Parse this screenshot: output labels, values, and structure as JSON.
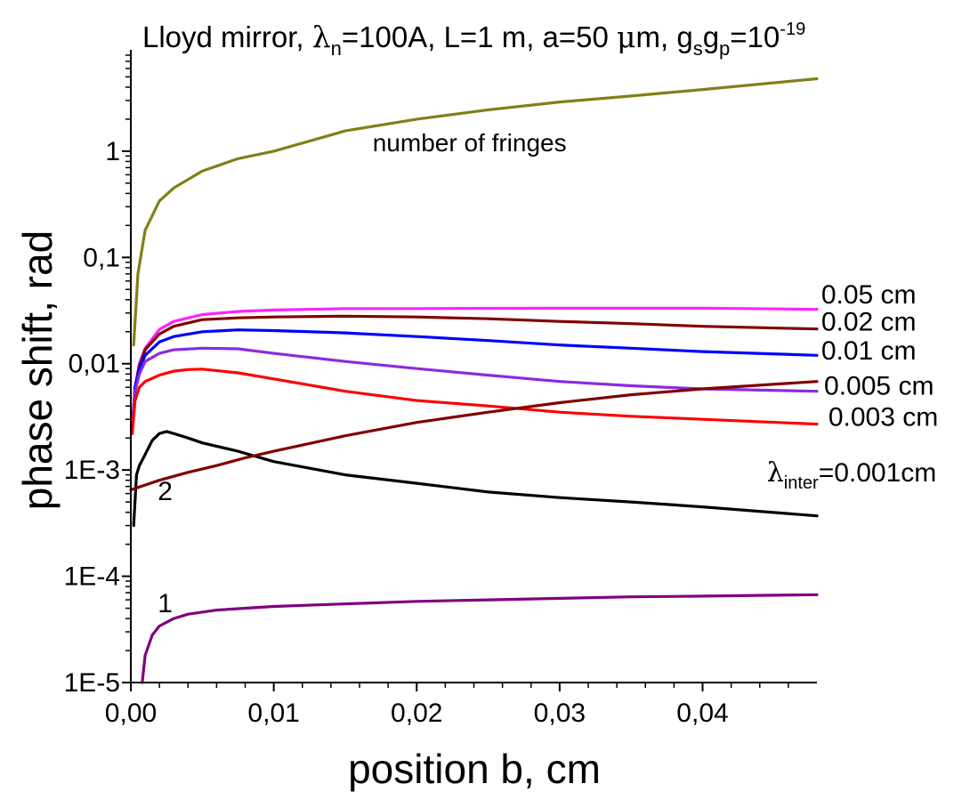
{
  "chart_data": {
    "type": "line",
    "title": {
      "parts": [
        {
          "text": "Lloyd mirror, "
        },
        {
          "text": "λ",
          "style": "greek"
        },
        {
          "text": "n",
          "style": "sub"
        },
        {
          "text": "=100A, L=1 m, a=50 "
        },
        {
          "text": "μ",
          "style": "greek"
        },
        {
          "text": "m, g"
        },
        {
          "text": "s",
          "style": "sub"
        },
        {
          "text": "g"
        },
        {
          "text": "p",
          "style": "sub"
        },
        {
          "text": "=10"
        },
        {
          "text": "-19",
          "style": "sup"
        }
      ]
    },
    "xlabel": "position b, cm",
    "ylabel": "phase shift,  rad",
    "xlim": [
      0,
      0.048
    ],
    "ylim": [
      1e-05,
      8
    ],
    "yscale": "log",
    "x_ticks": [
      0,
      0.01,
      0.02,
      0.03,
      0.04
    ],
    "x_tick_labels": [
      "0,00",
      "0,01",
      "0,02",
      "0,03",
      "0,04"
    ],
    "y_ticks": [
      1e-05,
      0.0001,
      0.001,
      0.01,
      0.1,
      1
    ],
    "y_tick_labels": [
      "1E-5",
      "1E-4",
      "1E-3",
      "0,01",
      "0,1",
      "1"
    ],
    "grid": false,
    "legend": "none",
    "series": [
      {
        "color": "#808018",
        "x": [
          0.0002,
          0.0005,
          0.001,
          0.002,
          0.003,
          0.005,
          0.0075,
          0.01,
          0.015,
          0.02,
          0.025,
          0.03,
          0.035,
          0.04,
          0.048
        ],
        "y": [
          0.015,
          0.07,
          0.18,
          0.34,
          0.45,
          0.65,
          0.85,
          1.0,
          1.55,
          2.0,
          2.45,
          2.9,
          3.3,
          3.8,
          4.8
        ]
      },
      {
        "color": "#ff22ff",
        "x": [
          0.0001,
          0.0003,
          0.0006,
          0.001,
          0.002,
          0.003,
          0.005,
          0.0075,
          0.01,
          0.015,
          0.02,
          0.025,
          0.03,
          0.035,
          0.04,
          0.048
        ],
        "y": [
          0.0025,
          0.006,
          0.01,
          0.014,
          0.021,
          0.025,
          0.029,
          0.031,
          0.032,
          0.033,
          0.033,
          0.0332,
          0.0333,
          0.0333,
          0.0333,
          0.0325
        ]
      },
      {
        "color": "#800000",
        "x": [
          0.0001,
          0.0003,
          0.0006,
          0.001,
          0.002,
          0.003,
          0.005,
          0.0075,
          0.01,
          0.015,
          0.02,
          0.025,
          0.03,
          0.035,
          0.04,
          0.048
        ],
        "y": [
          0.0025,
          0.006,
          0.0095,
          0.0135,
          0.019,
          0.0225,
          0.026,
          0.027,
          0.0275,
          0.028,
          0.0275,
          0.0265,
          0.025,
          0.0238,
          0.0225,
          0.0212
        ]
      },
      {
        "color": "#0000ff",
        "x": [
          0.0001,
          0.0003,
          0.0006,
          0.001,
          0.002,
          0.003,
          0.005,
          0.0075,
          0.01,
          0.015,
          0.02,
          0.025,
          0.03,
          0.035,
          0.04,
          0.048
        ],
        "y": [
          0.0025,
          0.006,
          0.009,
          0.012,
          0.016,
          0.018,
          0.02,
          0.0208,
          0.0205,
          0.0195,
          0.018,
          0.0165,
          0.015,
          0.014,
          0.013,
          0.012
        ]
      },
      {
        "color": "#8a2be2",
        "x": [
          0.0001,
          0.0003,
          0.0006,
          0.001,
          0.002,
          0.003,
          0.005,
          0.0075,
          0.01,
          0.015,
          0.02,
          0.025,
          0.03,
          0.035,
          0.04,
          0.048
        ],
        "y": [
          0.0025,
          0.0055,
          0.008,
          0.0105,
          0.0125,
          0.0135,
          0.014,
          0.0138,
          0.0125,
          0.0105,
          0.009,
          0.0078,
          0.0068,
          0.0062,
          0.0058,
          0.0055
        ]
      },
      {
        "color": "#ff0000",
        "x": [
          0.0001,
          0.0003,
          0.0006,
          0.001,
          0.002,
          0.003,
          0.004,
          0.005,
          0.0075,
          0.01,
          0.015,
          0.02,
          0.025,
          0.03,
          0.035,
          0.04,
          0.048
        ],
        "y": [
          0.0022,
          0.0045,
          0.006,
          0.0068,
          0.0078,
          0.0085,
          0.0088,
          0.0089,
          0.0082,
          0.0072,
          0.0055,
          0.0045,
          0.004,
          0.0035,
          0.0032,
          0.003,
          0.0027
        ]
      },
      {
        "color": "#000000",
        "x": [
          0.0002,
          0.0004,
          0.0006,
          0.001,
          0.0015,
          0.002,
          0.0025,
          0.003,
          0.004,
          0.005,
          0.0075,
          0.01,
          0.015,
          0.02,
          0.025,
          0.03,
          0.035,
          0.04,
          0.048
        ],
        "y": [
          0.0003,
          0.0009,
          0.0011,
          0.0014,
          0.0019,
          0.0022,
          0.0023,
          0.0022,
          0.002,
          0.0018,
          0.0015,
          0.0012,
          0.0009,
          0.00075,
          0.00062,
          0.00055,
          0.0005,
          0.00045,
          0.00037
        ]
      },
      {
        "color": "#800000",
        "x": [
          0,
          0.002,
          0.004,
          0.006,
          0.008,
          0.01,
          0.015,
          0.02,
          0.025,
          0.03,
          0.035,
          0.04,
          0.048
        ],
        "y": [
          0.00065,
          0.0008,
          0.00095,
          0.0011,
          0.0013,
          0.0015,
          0.0021,
          0.0028,
          0.0035,
          0.0043,
          0.0051,
          0.0058,
          0.0068
        ]
      },
      {
        "color": "#800080",
        "x": [
          0.0008,
          0.001,
          0.0015,
          0.002,
          0.003,
          0.004,
          0.006,
          0.008,
          0.01,
          0.015,
          0.02,
          0.025,
          0.03,
          0.035,
          0.04,
          0.048
        ],
        "y": [
          1e-05,
          1.8e-05,
          2.8e-05,
          3.4e-05,
          4e-05,
          4.4e-05,
          4.8e-05,
          5e-05,
          5.2e-05,
          5.5e-05,
          5.8e-05,
          6e-05,
          6.2e-05,
          6.4e-05,
          6.5e-05,
          6.7e-05
        ]
      }
    ],
    "curve_labels": [
      {
        "text": "0.05 cm",
        "x": 0.0483,
        "y": 0.037
      },
      {
        "text": "0.02 cm",
        "x": 0.0483,
        "y": 0.0205
      },
      {
        "text": "0.01 cm",
        "x": 0.0483,
        "y": 0.011
      },
      {
        "text": "0.005 cm",
        "x": 0.0485,
        "y": 0.0051
      },
      {
        "text": "0.003 cm",
        "x": 0.0488,
        "y": 0.0026
      },
      {
        "text": "number of fringes",
        "x": 0.0237,
        "y": 1.0
      }
    ],
    "lambda_label": {
      "prefix": "λ",
      "sub": "inter",
      "suffix": "=0.001cm",
      "x": 0.0445,
      "y": 0.00078
    },
    "numbered_labels": [
      {
        "text": "2",
        "x": 0.0024,
        "y": 0.00052
      },
      {
        "text": "1",
        "x": 0.0024,
        "y": 4.6e-05
      }
    ]
  }
}
